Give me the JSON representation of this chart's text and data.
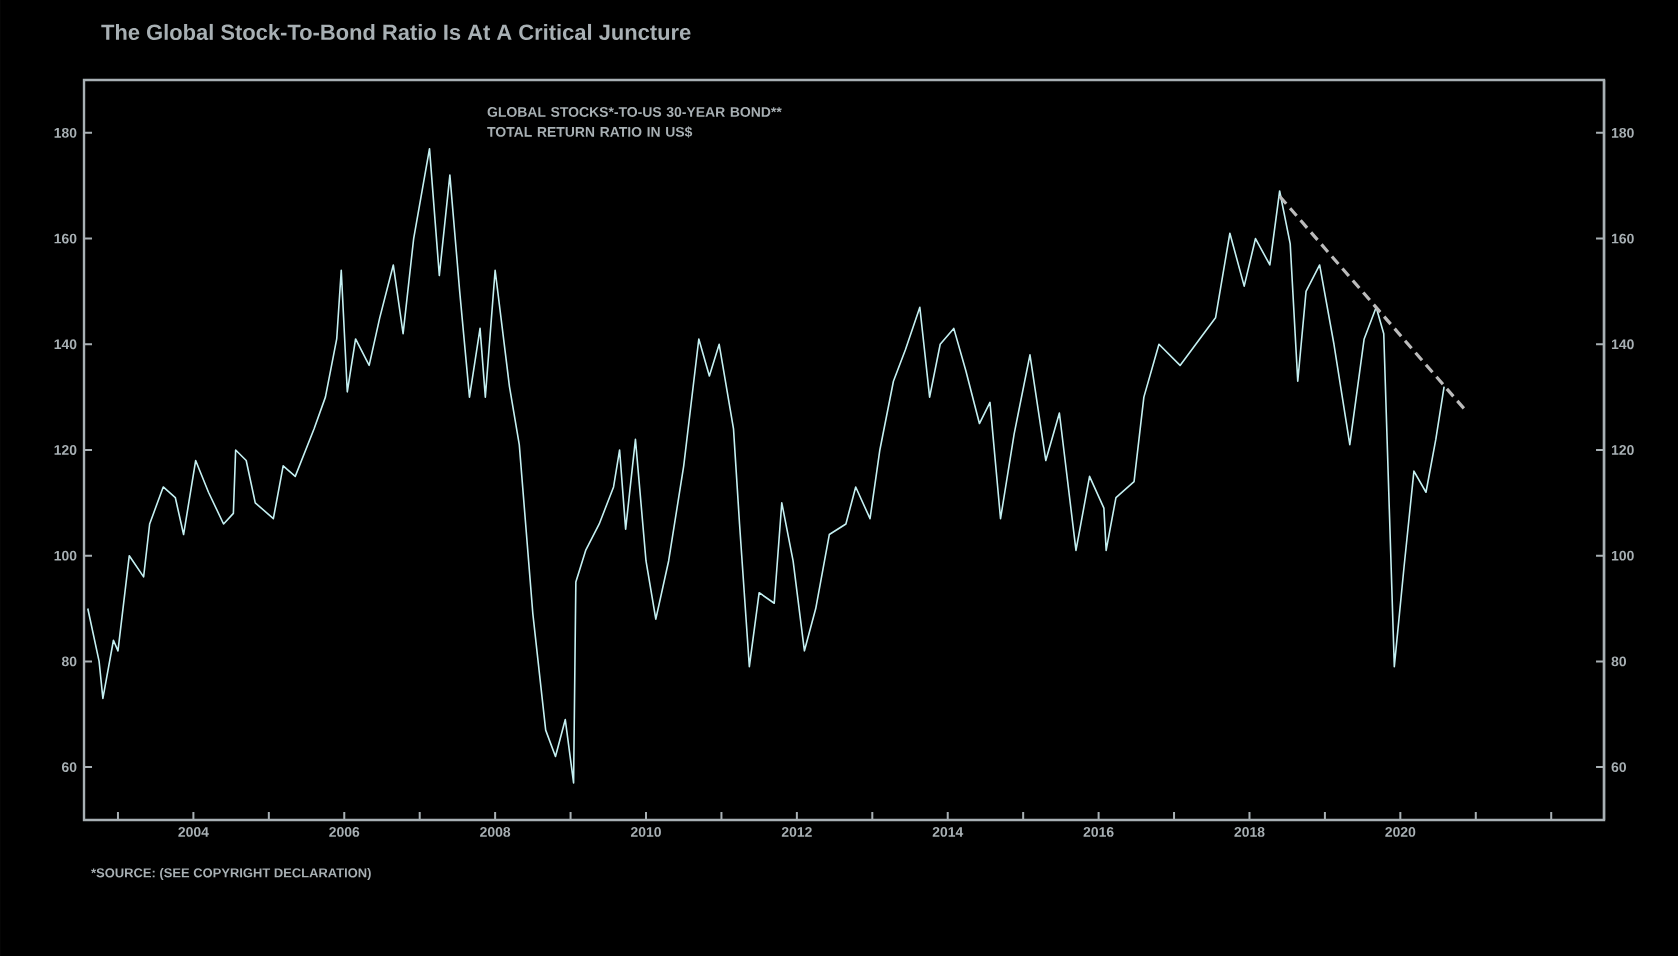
{
  "chart_data": {
    "type": "line",
    "title": "The Global Stock-To-Bond Ratio Is At A Critical Juncture",
    "subtitle": "GLOBAL STOCKS*-TO-US 30-YEAR BOND** TOTAL RETURN RATIO IN US$",
    "annotations": [
      "*SOURCE: (SEE COPYRIGHT DECLARATION)"
    ],
    "series": [
      {
        "color": "#c4f0f2",
        "x": [
          2002.6,
          2002.75,
          2002.8,
          2002.94,
          2003.0,
          2003.15,
          2003.34,
          2003.42,
          2003.6,
          2003.76,
          2003.87,
          2004.03,
          2004.2,
          2004.4,
          2004.53,
          2004.56,
          2004.7,
          2004.82,
          2005.06,
          2005.19,
          2005.35,
          2005.6,
          2005.75,
          2005.9,
          2005.96,
          2006.04,
          2006.15,
          2006.33,
          2006.47,
          2006.65,
          2006.78,
          2006.92,
          2007.13,
          2007.26,
          2007.4,
          2007.53,
          2007.66,
          2007.8,
          2007.87,
          2008.0,
          2008.19,
          2008.32,
          2008.5,
          2008.67,
          2008.8,
          2008.93,
          2009.04,
          2009.07,
          2009.2,
          2009.38,
          2009.57,
          2009.65,
          2009.73,
          2009.86,
          2010.0,
          2010.13,
          2010.3,
          2010.5,
          2010.7,
          2010.84,
          2010.97,
          2011.16,
          2011.24,
          2011.37,
          2011.5,
          2011.7,
          2011.8,
          2011.95,
          2012.1,
          2012.25,
          2012.43,
          2012.65,
          2012.78,
          2012.97,
          2013.1,
          2013.28,
          2013.44,
          2013.63,
          2013.76,
          2013.9,
          2014.08,
          2014.24,
          2014.42,
          2014.56,
          2014.7,
          2014.88,
          2015.09,
          2015.3,
          2015.48,
          2015.7,
          2015.88,
          2016.07,
          2016.1,
          2016.23,
          2016.47,
          2016.6,
          2016.8,
          2017.08,
          2017.34,
          2017.55,
          2017.74,
          2017.93,
          2018.08,
          2018.27,
          2018.4,
          2018.54,
          2018.64,
          2018.75,
          2018.93,
          2019.12,
          2019.33,
          2019.52,
          2019.68,
          2019.78,
          2019.92,
          2020.05,
          2020.18,
          2020.34,
          2020.47,
          2020.58
        ],
        "values": [
          90,
          80,
          73,
          84,
          82,
          100,
          96,
          106,
          113,
          111,
          104,
          118,
          112,
          106,
          108,
          120,
          118,
          110,
          107,
          117,
          115,
          124,
          130,
          141,
          154,
          131,
          141,
          136,
          145,
          155,
          142,
          160,
          177,
          153,
          172,
          150,
          130,
          143,
          130,
          154,
          132,
          121,
          89,
          67,
          62,
          69,
          57,
          95,
          101,
          106,
          113,
          120,
          105,
          122,
          99,
          88,
          99,
          117,
          141,
          134,
          140,
          124,
          106,
          79,
          93,
          91,
          110,
          99,
          82,
          90,
          104,
          106,
          113,
          107,
          120,
          133,
          139,
          147,
          130,
          140,
          143,
          135,
          125,
          129,
          107,
          123,
          138,
          118,
          127,
          101,
          115,
          109,
          101,
          111,
          114,
          130,
          140,
          136,
          141,
          145,
          161,
          151,
          160,
          155,
          169,
          159,
          133,
          150,
          155,
          140,
          121,
          141,
          147,
          142,
          79,
          98,
          116,
          112,
          122,
          132
        ]
      },
      {
        "color": "#bbbbbb",
        "line_style": "dashed",
        "x": [
          2018.4,
          2020.87
        ],
        "values": [
          168,
          127.4
        ]
      }
    ],
    "xlim": [
      2002.55,
      2022.7
    ],
    "xticks": [
      {
        "value": 2003,
        "label": null
      },
      2004,
      {
        "value": 2005,
        "label": null
      },
      2006,
      {
        "value": 2007,
        "label": null
      },
      2008,
      {
        "value": 2009,
        "label": null
      },
      2010,
      {
        "value": 2011,
        "label": null
      },
      2012,
      {
        "value": 2013,
        "label": null
      },
      2014,
      {
        "value": 2015,
        "label": null
      },
      2016,
      {
        "value": 2017,
        "label": null
      },
      2018,
      {
        "value": 2019,
        "label": null
      },
      2020,
      {
        "value": 2021,
        "label": null
      },
      {
        "value": 2022,
        "label": null
      }
    ],
    "ylim": [
      50,
      190
    ],
    "yticks": [
      60,
      80,
      100,
      120,
      140,
      160,
      180
    ],
    "y2lim": [
      50,
      190
    ],
    "y2ticks": [
      60,
      80,
      100,
      120,
      140,
      160,
      180
    ]
  }
}
